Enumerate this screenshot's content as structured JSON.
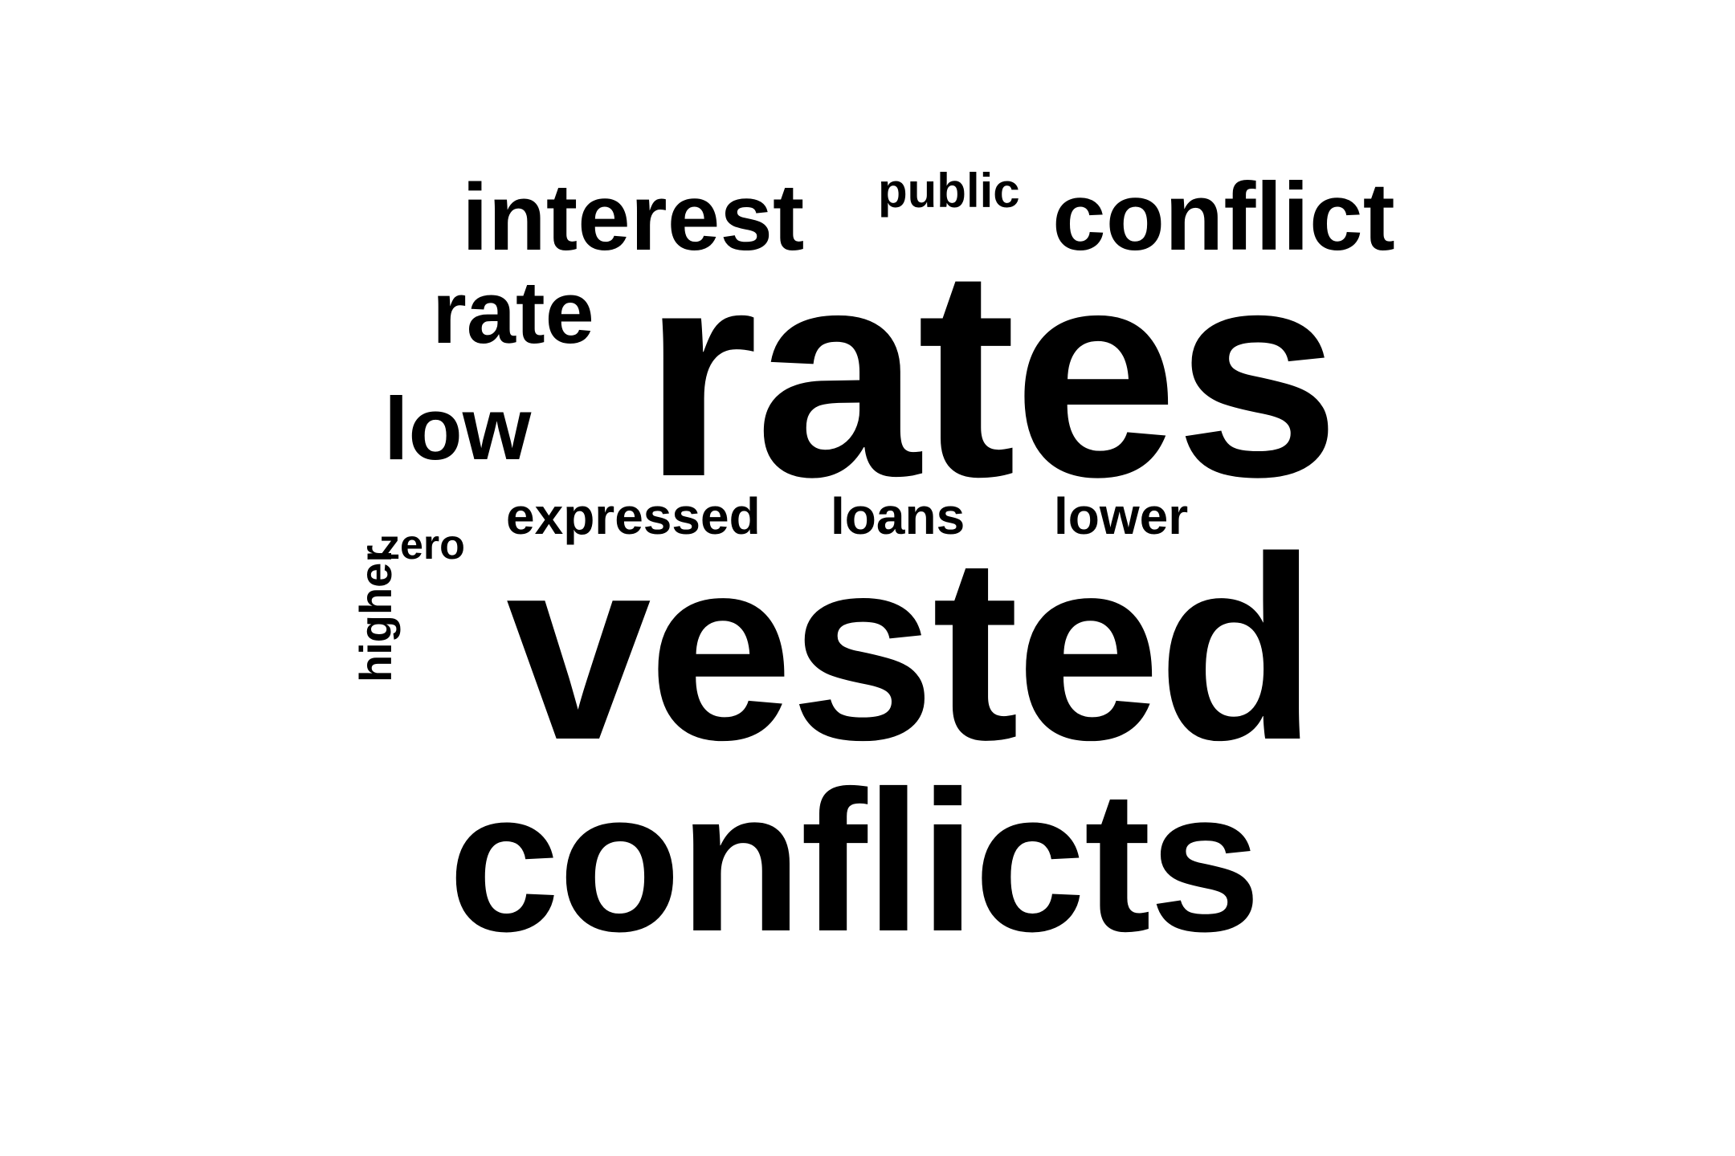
{
  "word_cloud": {
    "words": {
      "rates": "rates",
      "vested": "vested",
      "conflicts": "conflicts",
      "interest": "interest",
      "conflict": "conflict",
      "rate": "rate",
      "low": "low",
      "public": "public",
      "expressed": "expressed",
      "loans": "loans",
      "lower": "lower",
      "zero": "zero",
      "higher": "higher"
    },
    "text_color": "#000000",
    "background_color": "#ffffff"
  }
}
